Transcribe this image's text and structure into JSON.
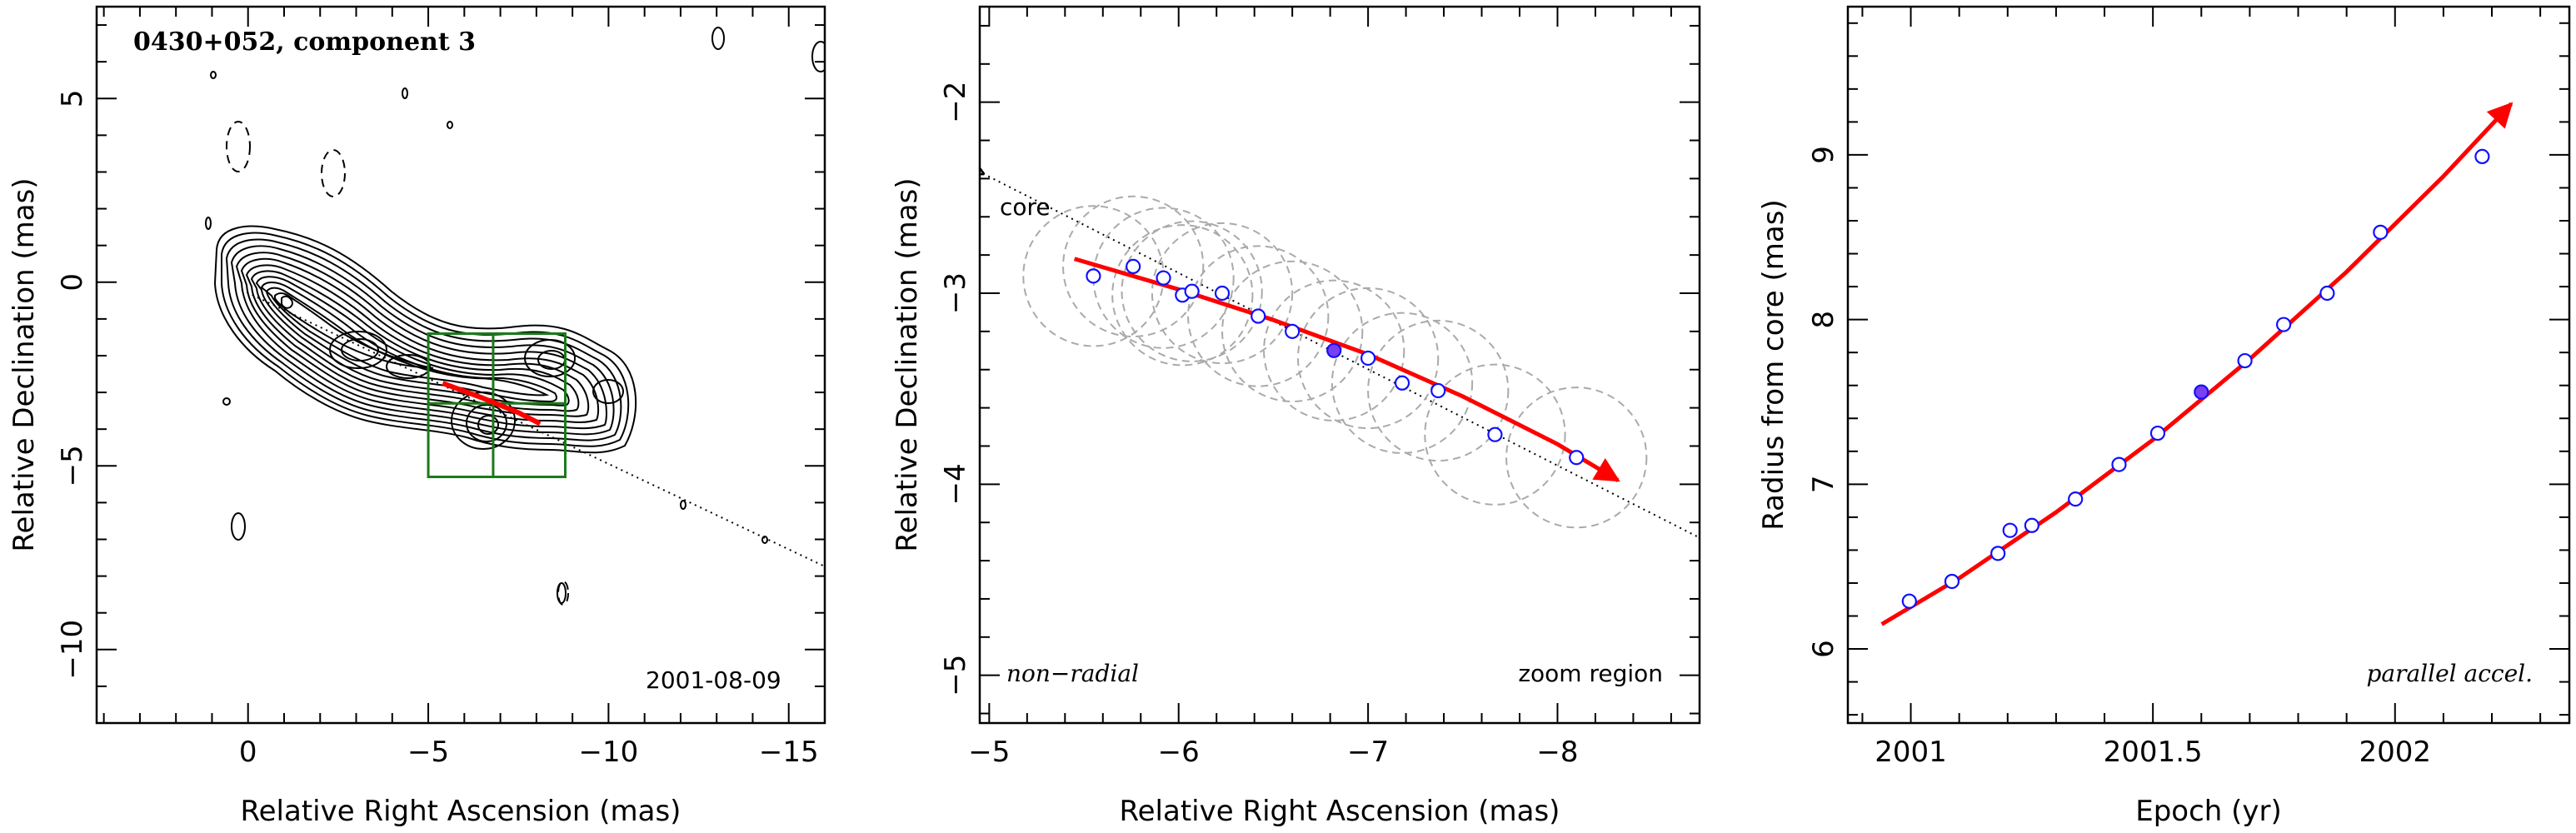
{
  "chart_data": [
    {
      "type": "scatter",
      "panel": "map",
      "title": "0430+052, component 3",
      "xlabel": "Relative Right Ascension (mas)",
      "ylabel": "Relative Declination (mas)",
      "xlim": [
        4.2,
        -16
      ],
      "ylim": [
        -12,
        7.5
      ],
      "xticks": [
        0,
        -5,
        -10,
        -15
      ],
      "yticks": [
        5,
        0,
        -5,
        -10
      ],
      "annotations": [
        "2001-08-09"
      ],
      "core_position": [
        0,
        0
      ],
      "jet_axis": {
        "from": [
          0,
          0
        ],
        "to": [
          -16,
          -7.6
        ]
      },
      "zoom_box": {
        "x": [
          -5,
          -8.8
        ],
        "y": [
          -1.4,
          -5.3
        ],
        "divider_x": -6.8,
        "divider_y": -3.3
      },
      "trajectory": [
        [
          -5.4,
          -2.75
        ],
        [
          -6.5,
          -3.15
        ],
        [
          -7.5,
          -3.55
        ],
        [
          -8.1,
          -3.85
        ]
      ],
      "positive_contour_levels": 13,
      "negative_contours_dashed": true
    },
    {
      "type": "scatter",
      "panel": "zoom",
      "xlabel": "Relative Right Ascension (mas)",
      "ylabel": "Relative Declination (mas)",
      "xlim": [
        -4.95,
        -8.75
      ],
      "ylim": [
        -5.25,
        -1.5
      ],
      "xticks": [
        -5,
        -6,
        -7,
        -8
      ],
      "yticks": [
        -2,
        -3,
        -4,
        -5
      ],
      "annotations": [
        "core",
        "non−radial",
        "zoom region"
      ],
      "points": [
        {
          "x": -5.55,
          "y": -2.91
        },
        {
          "x": -5.76,
          "y": -2.86
        },
        {
          "x": -5.92,
          "y": -2.92
        },
        {
          "x": -6.02,
          "y": -3.01
        },
        {
          "x": -6.07,
          "y": -2.99
        },
        {
          "x": -6.23,
          "y": -3.0
        },
        {
          "x": -6.42,
          "y": -3.12
        },
        {
          "x": -6.6,
          "y": -3.2
        },
        {
          "x": -6.82,
          "y": -3.3,
          "highlight": true
        },
        {
          "x": -7.0,
          "y": -3.34
        },
        {
          "x": -7.18,
          "y": -3.47
        },
        {
          "x": -7.37,
          "y": -3.51
        },
        {
          "x": -7.67,
          "y": -3.74
        },
        {
          "x": -8.1,
          "y": -3.86
        }
      ],
      "circle_radius": 0.37,
      "trajectory": [
        [
          -5.45,
          -2.82
        ],
        [
          -6.0,
          -2.98
        ],
        [
          -6.5,
          -3.14
        ],
        [
          -7.0,
          -3.32
        ],
        [
          -7.5,
          -3.54
        ],
        [
          -8.0,
          -3.79
        ],
        [
          -8.32,
          -3.98
        ]
      ],
      "jet_axis": {
        "from": [
          -4.95,
          -2.4
        ],
        "to": [
          -8.75,
          -4.28
        ]
      }
    },
    {
      "type": "scatter",
      "panel": "radius",
      "xlabel": "Epoch (yr)",
      "ylabel": "Radius from core (mas)",
      "xlim": [
        2000.87,
        2002.36
      ],
      "ylim": [
        5.55,
        9.9
      ],
      "xticks": [
        2001,
        2001.5,
        2002
      ],
      "yticks": [
        6,
        7,
        8,
        9
      ],
      "annotations": [
        "parallel accel."
      ],
      "points": [
        {
          "x": 2000.997,
          "y": 6.29
        },
        {
          "x": 2001.085,
          "y": 6.41
        },
        {
          "x": 2001.18,
          "y": 6.58
        },
        {
          "x": 2001.205,
          "y": 6.72
        },
        {
          "x": 2001.25,
          "y": 6.75
        },
        {
          "x": 2001.34,
          "y": 6.91
        },
        {
          "x": 2001.43,
          "y": 7.12
        },
        {
          "x": 2001.51,
          "y": 7.31
        },
        {
          "x": 2001.6,
          "y": 7.56,
          "highlight": true
        },
        {
          "x": 2001.69,
          "y": 7.75
        },
        {
          "x": 2001.77,
          "y": 7.97
        },
        {
          "x": 2001.86,
          "y": 8.16
        },
        {
          "x": 2001.97,
          "y": 8.53
        },
        {
          "x": 2002.18,
          "y": 8.99
        }
      ],
      "fit_curve": [
        [
          2000.94,
          6.15
        ],
        [
          2001.1,
          6.43
        ],
        [
          2001.3,
          6.83
        ],
        [
          2001.5,
          7.27
        ],
        [
          2001.7,
          7.76
        ],
        [
          2001.9,
          8.29
        ],
        [
          2002.1,
          8.87
        ],
        [
          2002.24,
          9.31
        ]
      ]
    }
  ]
}
